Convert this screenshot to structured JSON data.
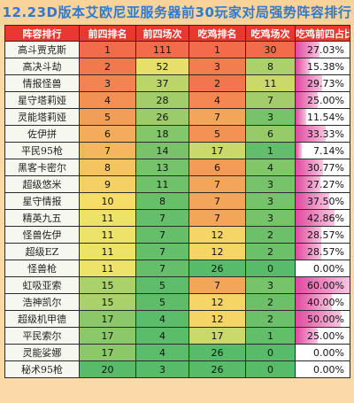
{
  "title": "12.23D版本艾欧尼亚服务器前30玩家对局强势阵容排行",
  "headers": [
    "阵容排行",
    "前四排名",
    "前四场次",
    "吃鸡排名",
    "吃鸡场次",
    "吃鸡前四占比"
  ],
  "rows": [
    {
      "name": "高斗贾克斯",
      "top4_rank": "1",
      "top4_games": "111",
      "win_rank": "1",
      "win_games": "30",
      "ratio": "27.03%"
    },
    {
      "name": "高决斗劫",
      "top4_rank": "2",
      "top4_games": "52",
      "win_rank": "3",
      "win_games": "8",
      "ratio": "15.38%"
    },
    {
      "name": "情报怪兽",
      "top4_rank": "3",
      "top4_games": "37",
      "win_rank": "2",
      "win_games": "11",
      "ratio": "29.73%"
    },
    {
      "name": "星守塔莉娅",
      "top4_rank": "4",
      "top4_games": "28",
      "win_rank": "4",
      "win_games": "7",
      "ratio": "25.00%"
    },
    {
      "name": "灵能塔莉娅",
      "top4_rank": "5",
      "top4_games": "26",
      "win_rank": "7",
      "win_games": "3",
      "ratio": "11.54%"
    },
    {
      "name": "佐伊拼",
      "top4_rank": "6",
      "top4_games": "18",
      "win_rank": "5",
      "win_games": "6",
      "ratio": "33.33%"
    },
    {
      "name": "平民95枪",
      "top4_rank": "7",
      "top4_games": "14",
      "win_rank": "17",
      "win_games": "1",
      "ratio": "7.14%"
    },
    {
      "name": "黑客卡密尔",
      "top4_rank": "8",
      "top4_games": "13",
      "win_rank": "6",
      "win_games": "4",
      "ratio": "30.77%"
    },
    {
      "name": "超级悠米",
      "top4_rank": "9",
      "top4_games": "11",
      "win_rank": "7",
      "win_games": "3",
      "ratio": "27.27%"
    },
    {
      "name": "星守情报",
      "top4_rank": "10",
      "top4_games": "8",
      "win_rank": "7",
      "win_games": "3",
      "ratio": "37.50%"
    },
    {
      "name": "精英九五",
      "top4_rank": "11",
      "top4_games": "7",
      "win_rank": "7",
      "win_games": "3",
      "ratio": "42.86%"
    },
    {
      "name": "怪兽佐伊",
      "top4_rank": "11",
      "top4_games": "7",
      "win_rank": "12",
      "win_games": "2",
      "ratio": "28.57%"
    },
    {
      "name": "超级EZ",
      "top4_rank": "11",
      "top4_games": "7",
      "win_rank": "12",
      "win_games": "2",
      "ratio": "28.57%"
    },
    {
      "name": "怪兽枪",
      "top4_rank": "11",
      "top4_games": "7",
      "win_rank": "26",
      "win_games": "0",
      "ratio": "0.00%"
    },
    {
      "name": "虹吸亚索",
      "top4_rank": "15",
      "top4_games": "5",
      "win_rank": "7",
      "win_games": "3",
      "ratio": "60.00%"
    },
    {
      "name": "浩神凯尔",
      "top4_rank": "15",
      "top4_games": "5",
      "win_rank": "12",
      "win_games": "2",
      "ratio": "40.00%"
    },
    {
      "name": "超级机甲德",
      "top4_rank": "17",
      "top4_games": "4",
      "win_rank": "12",
      "win_games": "2",
      "ratio": "50.00%"
    },
    {
      "name": "平民索尔",
      "top4_rank": "17",
      "top4_games": "4",
      "win_rank": "17",
      "win_games": "1",
      "ratio": "25.00%"
    },
    {
      "name": "灵能娑娜",
      "top4_rank": "17",
      "top4_games": "4",
      "win_rank": "26",
      "win_games": "0",
      "ratio": "0.00%"
    },
    {
      "name": "秘术95枪",
      "top4_rank": "20",
      "top4_games": "3",
      "win_rank": "26",
      "win_games": "0",
      "ratio": "0.00%"
    }
  ],
  "colors": {
    "header_bg": "#e8382f",
    "title_text": "#2f7ad1",
    "pct_bar": "#e04aa0",
    "scale_good": "#f26b4a",
    "scale_mid": "#f5e46a",
    "scale_bad": "#58bb6a"
  }
}
